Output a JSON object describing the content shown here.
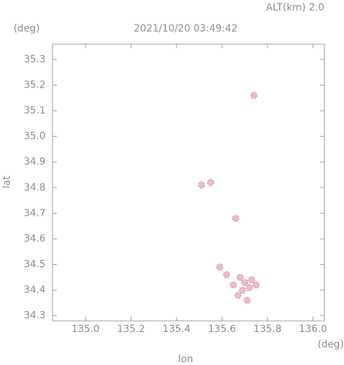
{
  "chart_data": {
    "type": "scatter",
    "title": "2021/10/20 03:49:42",
    "annotation": "ALT(km) 2.0",
    "x_label": "lon",
    "y_label": "lat",
    "x_unit": "(deg)",
    "y_unit": "(deg)",
    "color": "#f6b9bd",
    "edge_color": "#6a6ad8",
    "x": [
      135.74,
      135.51,
      135.55,
      135.66,
      135.59,
      135.62,
      135.68,
      135.65,
      135.69,
      135.73,
      135.75,
      135.67,
      135.71,
      135.72,
      135.7
    ],
    "y": [
      35.16,
      34.81,
      34.82,
      34.68,
      34.49,
      34.46,
      34.45,
      34.42,
      34.4,
      34.44,
      34.42,
      34.38,
      34.36,
      34.41,
      34.43
    ],
    "xlim": [
      134.855,
      136.05
    ],
    "ylim": [
      34.28,
      35.36
    ],
    "xticks": [
      {
        "value": 135,
        "label": "135.0"
      },
      135.2,
      135.4,
      135.6,
      135.8,
      {
        "value": 136,
        "label": "136.0"
      }
    ],
    "yticks": [
      34.3,
      34.4,
      34.5,
      34.6,
      34.7,
      34.8,
      34.9,
      {
        "value": 35,
        "label": "35.0"
      },
      35.1,
      35.2,
      35.3
    ]
  }
}
